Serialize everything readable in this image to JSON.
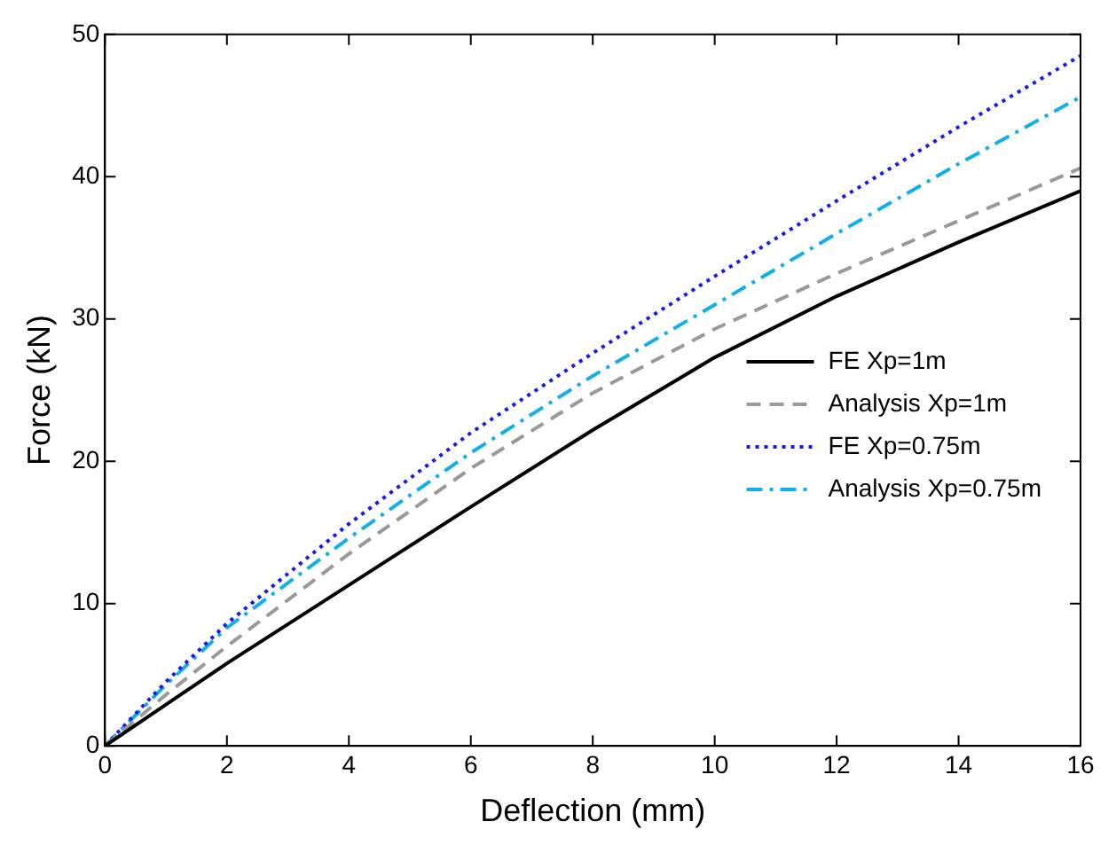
{
  "chart_data": {
    "type": "line",
    "xlabel": "Deflection (mm)",
    "ylabel": "Force (kN)",
    "x": [
      0,
      1,
      2,
      4,
      6,
      8,
      10,
      12,
      14,
      16
    ],
    "series": [
      {
        "name": "FE Xp=1m",
        "color": "#000000",
        "line_style": "solid",
        "values": [
          0,
          2.9,
          5.8,
          11.3,
          16.8,
          22.2,
          27.3,
          31.6,
          35.4,
          39
        ]
      },
      {
        "name": "Analysis Xp=1m",
        "color": "#999999",
        "line_style": "dashed",
        "values": [
          0,
          3.6,
          7,
          13.5,
          19.5,
          24.8,
          29.3,
          33.2,
          36.9,
          40.6
        ]
      },
      {
        "name": "FE Xp=0.75m",
        "color": "#1a1aee",
        "line_style": "dotted",
        "values": [
          0,
          4.5,
          8.6,
          15.6,
          22,
          27.6,
          33,
          38.3,
          43.5,
          48.5
        ]
      },
      {
        "name": "Analysis Xp=0.75m",
        "color": "#11b0e8",
        "line_style": "dashdot",
        "values": [
          0,
          4.3,
          8.3,
          14.6,
          20.6,
          26,
          31,
          36,
          40.9,
          45.6
        ]
      }
    ],
    "xlim": [
      0,
      16
    ],
    "xticks": [
      0,
      2,
      4,
      6,
      8,
      10,
      12,
      14,
      16
    ],
    "ylim": [
      0,
      50
    ],
    "yticks": [
      0,
      10,
      20,
      30,
      40,
      50
    ],
    "grid": false,
    "legend": "right",
    "marker": "none"
  }
}
